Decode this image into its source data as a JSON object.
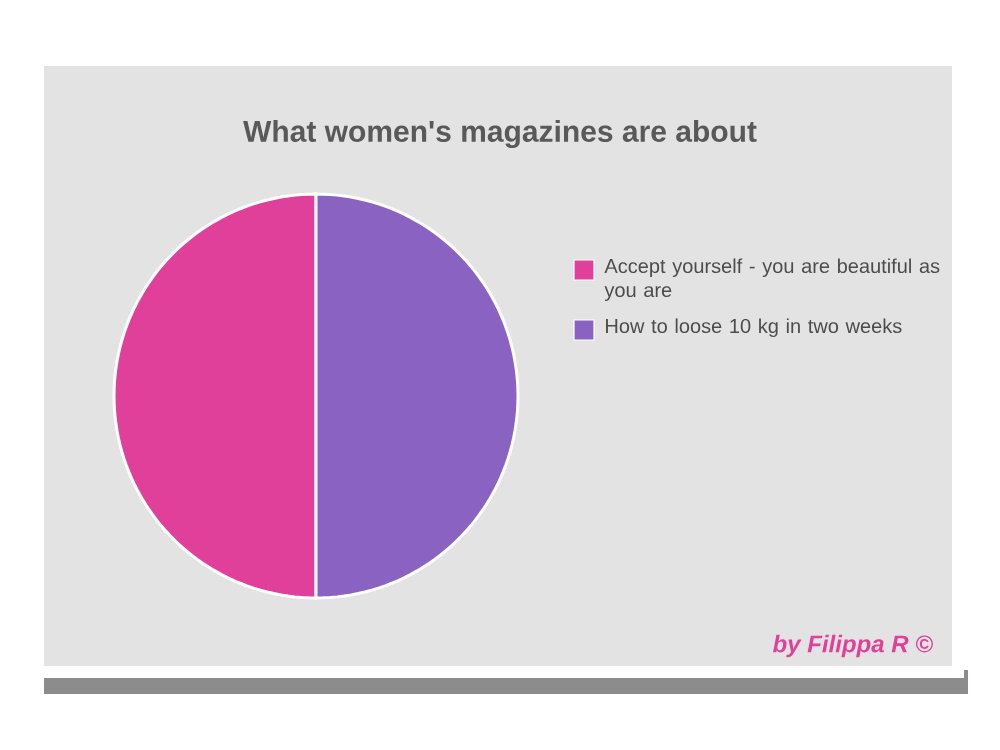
{
  "chart_data": {
    "type": "pie",
    "title": "What women's magazines are about",
    "categories": [
      "Accept yourself - you are beautiful as you are",
      "How to loose 10 kg in two weeks"
    ],
    "values": [
      50,
      50
    ],
    "colors": [
      "#e0409a",
      "#8a62c2"
    ],
    "legend": "right",
    "annotations": [
      "by Filippa R ©"
    ]
  }
}
